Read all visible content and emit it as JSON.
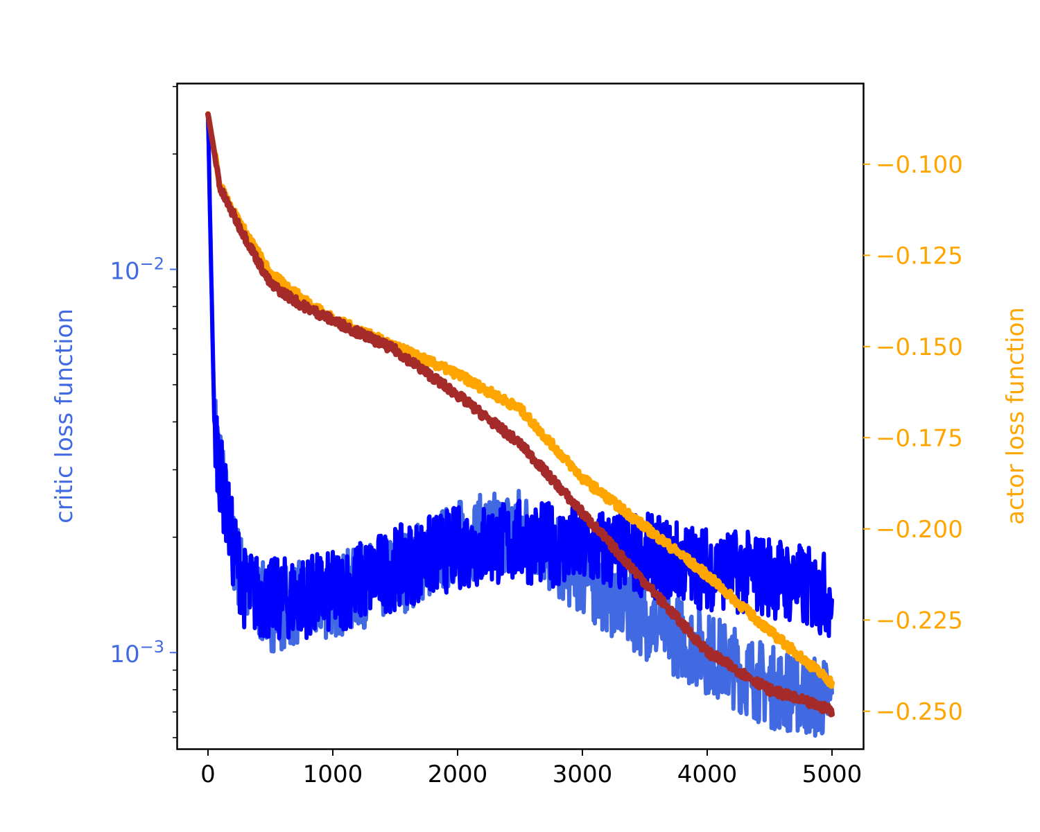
{
  "chart_data": {
    "type": "line",
    "title": "",
    "xlabel": "",
    "ylabel_left": "critic loss function",
    "ylabel_right": "actor loss function",
    "xlim": [
      -250,
      5250
    ],
    "ylim_left": [
      0.000561,
      0.0306
    ],
    "ylim_right": [
      -0.2603,
      -0.0778
    ],
    "left_scale": "log",
    "right_scale": "linear",
    "grid": false,
    "x_ticks": [
      0,
      1000,
      2000,
      3000,
      4000,
      5000
    ],
    "x_tick_labels": [
      "0",
      "1000",
      "2000",
      "3000",
      "4000",
      "5000"
    ],
    "left_ticks": [
      0.01,
      0.001
    ],
    "left_tick_labels": [
      {
        "base": "10",
        "exp": "−2"
      },
      {
        "base": "10",
        "exp": "−3"
      }
    ],
    "left_minor_ticks": [
      0.0006,
      0.0007,
      0.0008,
      0.0009,
      0.002,
      0.003,
      0.004,
      0.005,
      0.006,
      0.007,
      0.008,
      0.009,
      0.02,
      0.03
    ],
    "right_ticks": [
      -0.1,
      -0.125,
      -0.15,
      -0.175,
      -0.2,
      -0.225,
      -0.25
    ],
    "right_tick_labels": [
      "−0.100",
      "−0.125",
      "−0.150",
      "−0.175",
      "−0.200",
      "−0.225",
      "−0.250"
    ],
    "colors": {
      "left_axis": "#4169e1",
      "right_axis": "#ffa500",
      "frame": "#000000"
    },
    "series": [
      {
        "axis": "left",
        "color": "#4169e1",
        "noise": 0.22,
        "x": [
          0,
          50,
          100,
          200,
          300,
          500,
          750,
          1000,
          1500,
          2000,
          2500,
          3000,
          3500,
          4000,
          4500,
          5000
        ],
        "y": [
          0.0253,
          0.00414,
          0.00296,
          0.00188,
          0.00146,
          0.00129,
          0.00135,
          0.0014,
          0.00159,
          0.00195,
          0.00212,
          0.00159,
          0.00124,
          0.001,
          0.000815,
          0.00075
        ]
      },
      {
        "axis": "left",
        "color": "#0000ff",
        "noise": 0.22,
        "x": [
          0,
          50,
          100,
          200,
          300,
          500,
          1000,
          1500,
          2000,
          2500,
          3000,
          3500,
          4000,
          4500,
          5000
        ],
        "y": [
          0.0253,
          0.004,
          0.0029,
          0.0019,
          0.00145,
          0.00137,
          0.00143,
          0.00166,
          0.00188,
          0.00195,
          0.00188,
          0.0018,
          0.00166,
          0.00159,
          0.0014
        ]
      },
      {
        "axis": "right",
        "color": "#ffa500",
        "noise": 0.0025,
        "x": [
          0,
          100,
          250,
          500,
          750,
          1000,
          1500,
          2000,
          2500,
          2750,
          3000,
          3500,
          4000,
          4500,
          5000
        ],
        "y": [
          -0.0863,
          -0.1063,
          -0.1158,
          -0.13,
          -0.1367,
          -0.1424,
          -0.15,
          -0.1576,
          -0.1671,
          -0.1766,
          -0.1861,
          -0.1994,
          -0.2127,
          -0.228,
          -0.2422
        ]
      },
      {
        "axis": "right",
        "color": "#a52a2a",
        "noise": 0.0025,
        "x": [
          0,
          100,
          250,
          500,
          750,
          1000,
          1500,
          2000,
          2500,
          3000,
          3500,
          4000,
          4500,
          5000
        ],
        "y": [
          -0.0863,
          -0.107,
          -0.117,
          -0.1329,
          -0.1386,
          -0.1428,
          -0.151,
          -0.1633,
          -0.1766,
          -0.1956,
          -0.2146,
          -0.2337,
          -0.2441,
          -0.2498
        ]
      }
    ]
  }
}
